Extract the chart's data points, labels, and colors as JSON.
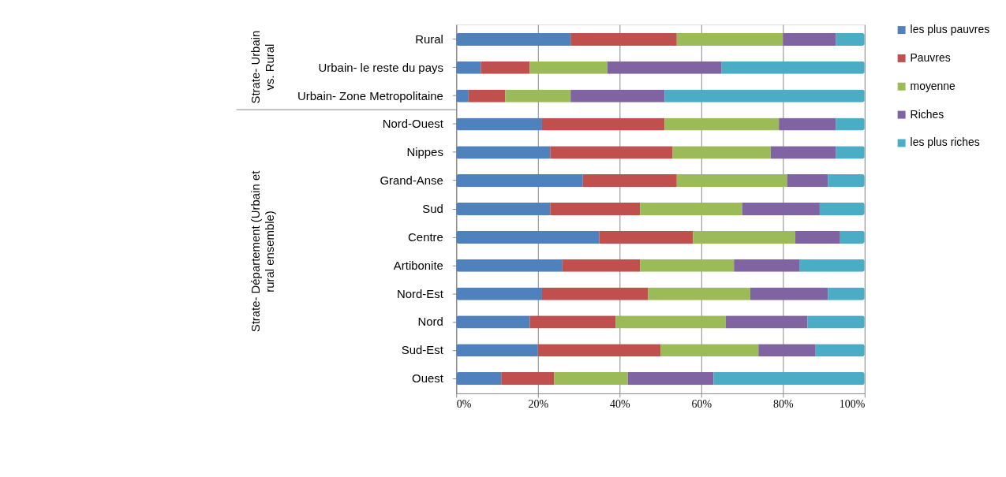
{
  "chart_data": {
    "type": "bar",
    "orientation": "horizontal",
    "stacked": true,
    "categories": [
      "Rural",
      "Urbain- le reste du pays",
      "Urbain- Zone Metropolitaine",
      "Nord-Ouest",
      "Nippes",
      "Grand-Anse",
      "Sud",
      "Centre",
      "Artibonite",
      "Nord-Est",
      "Nord",
      "Sud-Est",
      "Ouest"
    ],
    "series": [
      {
        "name": "les plus pauvres",
        "color": "#4f81bd",
        "values": [
          28,
          6,
          3,
          21,
          23,
          31,
          23,
          35,
          26,
          21,
          18,
          20,
          11
        ]
      },
      {
        "name": "Pauvres",
        "color": "#c0504d",
        "values": [
          26,
          12,
          9,
          30,
          30,
          23,
          22,
          23,
          19,
          26,
          21,
          30,
          13
        ]
      },
      {
        "name": "moyenne",
        "color": "#9bbb59",
        "values": [
          26,
          19,
          16,
          28,
          24,
          27,
          25,
          25,
          23,
          25,
          27,
          24,
          18
        ]
      },
      {
        "name": "Riches",
        "color": "#8064a2",
        "values": [
          13,
          28,
          23,
          14,
          16,
          10,
          19,
          11,
          16,
          19,
          20,
          14,
          21
        ]
      },
      {
        "name": "les plus riches",
        "color": "#4bacc6",
        "values": [
          7,
          35,
          49,
          7,
          7,
          9,
          11,
          6,
          16,
          9,
          14,
          12,
          37
        ]
      }
    ],
    "xlim": [
      0,
      100
    ],
    "xticks": [
      {
        "value": 0,
        "label": "0%"
      },
      {
        "value": 20,
        "label": "20%"
      },
      {
        "value": 40,
        "label": "40%"
      },
      {
        "value": 60,
        "label": "60%"
      },
      {
        "value": 80,
        "label": "80%"
      },
      {
        "value": 100,
        "label": "100%"
      }
    ],
    "grid": "x",
    "legend": "right",
    "annotations": [
      "Strate- Urbain vs. Rural",
      "Strate- Département (Urbain et rural ensemble)"
    ]
  }
}
